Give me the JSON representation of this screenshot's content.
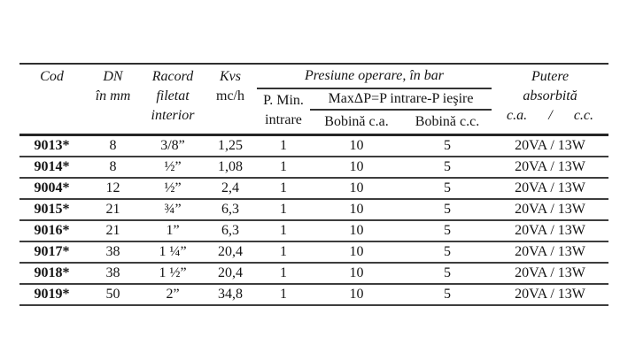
{
  "colors": {
    "background": "#ffffff",
    "text": "#151515",
    "rule": "#2f2f2f"
  },
  "table": {
    "header": {
      "cod": "Cod",
      "dn_line1": "DN",
      "dn_line2": "în mm",
      "racord_line1": "Racord",
      "racord_line2": "filetat",
      "racord_line3": "interior",
      "kvs_line1": "Kvs",
      "kvs_line2": "mc/h",
      "presiune_group": "Presiune operare, în bar",
      "pmin_line1": "P. Min.",
      "pmin_line2": "intrare",
      "maxdp": "MaxΔP=P intrare-P ieşire",
      "bobina_ca": "Bobină c.a.",
      "bobina_cc": "Bobină c.c.",
      "putere_line1": "Putere",
      "putere_line2": "absorbită",
      "putere_ca": "c.a.",
      "putere_slash": "/",
      "putere_cc": "c.c."
    },
    "rows": [
      {
        "cod": "9013*",
        "dn": "8",
        "racord": "3/8”",
        "kvs": "1,25",
        "pmin": "1",
        "bca": "10",
        "bcc": "5",
        "putere": "20VA / 13W"
      },
      {
        "cod": "9014*",
        "dn": "8",
        "racord": "½”",
        "kvs": "1,08",
        "pmin": "1",
        "bca": "10",
        "bcc": "5",
        "putere": "20VA / 13W"
      },
      {
        "cod": "9004*",
        "dn": "12",
        "racord": "½”",
        "kvs": "2,4",
        "pmin": "1",
        "bca": "10",
        "bcc": "5",
        "putere": "20VA / 13W"
      },
      {
        "cod": "9015*",
        "dn": "21",
        "racord": "¾”",
        "kvs": "6,3",
        "pmin": "1",
        "bca": "10",
        "bcc": "5",
        "putere": "20VA / 13W"
      },
      {
        "cod": "9016*",
        "dn": "21",
        "racord": "1”",
        "kvs": "6,3",
        "pmin": "1",
        "bca": "10",
        "bcc": "5",
        "putere": "20VA / 13W"
      },
      {
        "cod": "9017*",
        "dn": "38",
        "racord": "1 ¼”",
        "kvs": "20,4",
        "pmin": "1",
        "bca": "10",
        "bcc": "5",
        "putere": "20VA / 13W"
      },
      {
        "cod": "9018*",
        "dn": "38",
        "racord": "1 ½”",
        "kvs": "20,4",
        "pmin": "1",
        "bca": "10",
        "bcc": "5",
        "putere": "20VA / 13W"
      },
      {
        "cod": "9019*",
        "dn": "50",
        "racord": "2”",
        "kvs": "34,8",
        "pmin": "1",
        "bca": "10",
        "bcc": "5",
        "putere": "20VA / 13W"
      }
    ]
  }
}
